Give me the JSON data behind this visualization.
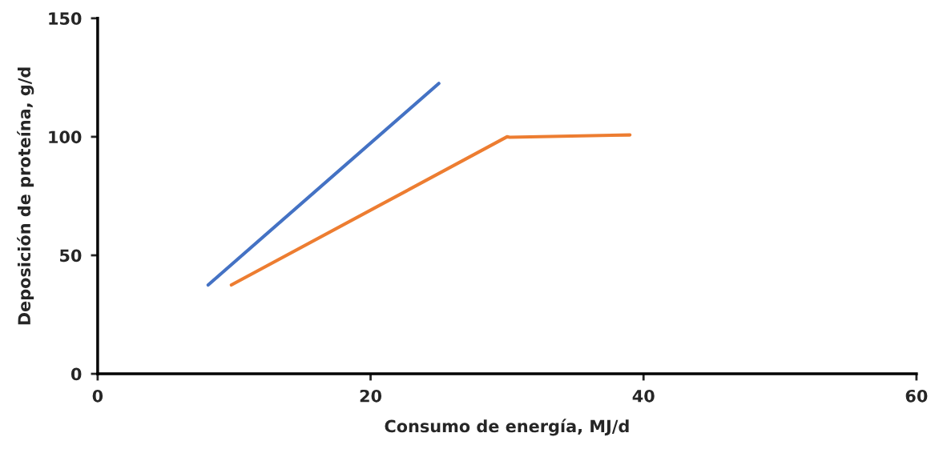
{
  "chart_data": {
    "type": "line",
    "xlabel": "Consumo de energía, MJ/d",
    "ylabel": "Deposición de proteína, g/d",
    "series": [
      {
        "color": "#4472c4",
        "x": [
          8.1,
          25
        ],
        "values": [
          37.5,
          122.5
        ]
      },
      {
        "color": "#ed7d31",
        "x": [
          9.8,
          30,
          30.2,
          39
        ],
        "values": [
          37.5,
          100,
          99.8,
          100.8
        ]
      }
    ],
    "xlim": [
      0,
      60
    ],
    "xticks": [
      0,
      20,
      40,
      60
    ],
    "ylim": [
      0,
      150
    ],
    "yticks": [
      0,
      50,
      100,
      150
    ],
    "grid": false,
    "marker": "none",
    "line_style": "solid"
  }
}
